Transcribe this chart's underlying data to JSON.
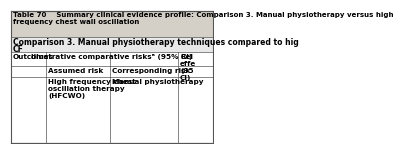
{
  "title_line1": "Table 70    Summary clinical evidence profile: Comparison 3. Manual physiotherapy versus high",
  "title_line2": "frequency chest wall oscillation",
  "comparison_line1": "Comparison 3. Manual physiotherapy techniques compared to hig",
  "comparison_line2": "CF",
  "outcomes_label": "Outcomes",
  "illus_label": "Illustrative comparative risksᵃ (95% CI)",
  "rel_label": "Rel-\neffe-\nct\n(95\n%\nCI)",
  "rel_label2": "Rel\neffe\n(95\nCI)",
  "assumed_label": "Assumed risk",
  "corresponding_label": "Corresponding risk",
  "hfcwo_label": "High frequency chest\noscillation therapy\n(HFCWO)",
  "manual_label": "Manual physiotherapy",
  "bg_title": "#d4d0c8",
  "bg_comparison": "#e8e8e8",
  "bg_white": "#ffffff",
  "border_color": "#555555",
  "text_color": "#000000",
  "font_size": 5.2,
  "title_font_size": 5.2
}
